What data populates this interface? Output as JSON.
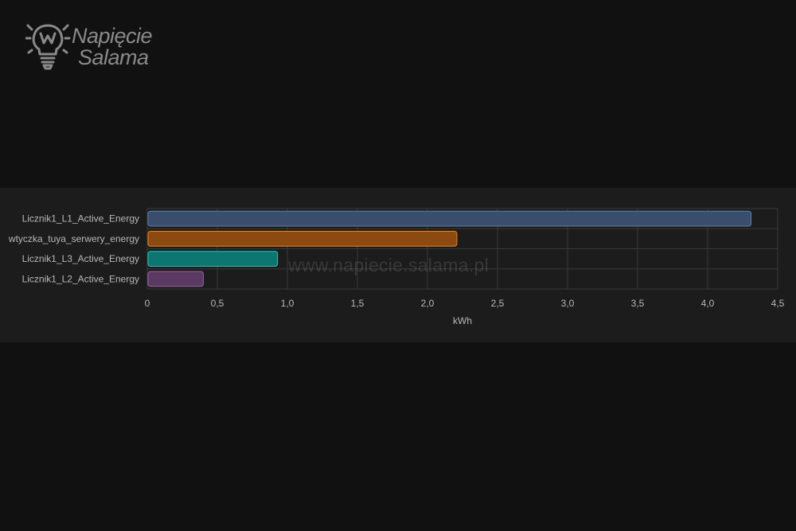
{
  "logo": {
    "line1": "Napięcie",
    "line2": "Salama",
    "icon": "lightbulb-w-icon",
    "color": "#8a8a8a"
  },
  "watermark": "www.napiecie.salama.pl",
  "colors": {
    "background": "#111111",
    "card": "#1c1c1c",
    "grid": "#3a3a3a",
    "text": "#b8b8b8"
  },
  "chart_data": {
    "type": "bar",
    "orientation": "horizontal",
    "categories": [
      "Licznik1_L1_Active_Energy",
      "wtyczka_tuya_serwery_energy",
      "Licznik1_L3_Active_Energy",
      "Licznik1_L2_Active_Energy"
    ],
    "values": [
      4.31,
      2.21,
      0.93,
      0.4
    ],
    "bar_colors": [
      {
        "fill": "#3a4d6c",
        "stroke": "#5f7fae"
      },
      {
        "fill": "#8c4a10",
        "stroke": "#e8861c"
      },
      {
        "fill": "#0e7670",
        "stroke": "#26c1b8"
      },
      {
        "fill": "#5a3a62",
        "stroke": "#9a62a6"
      }
    ],
    "xlabel": "kWh",
    "ylabel": "",
    "xlim": [
      0,
      4.5
    ],
    "x_ticks": [
      "0",
      "0,5",
      "1,0",
      "1,5",
      "2,0",
      "2,5",
      "3,0",
      "3,5",
      "4,0",
      "4,5"
    ],
    "grid": true,
    "legend": "none"
  }
}
